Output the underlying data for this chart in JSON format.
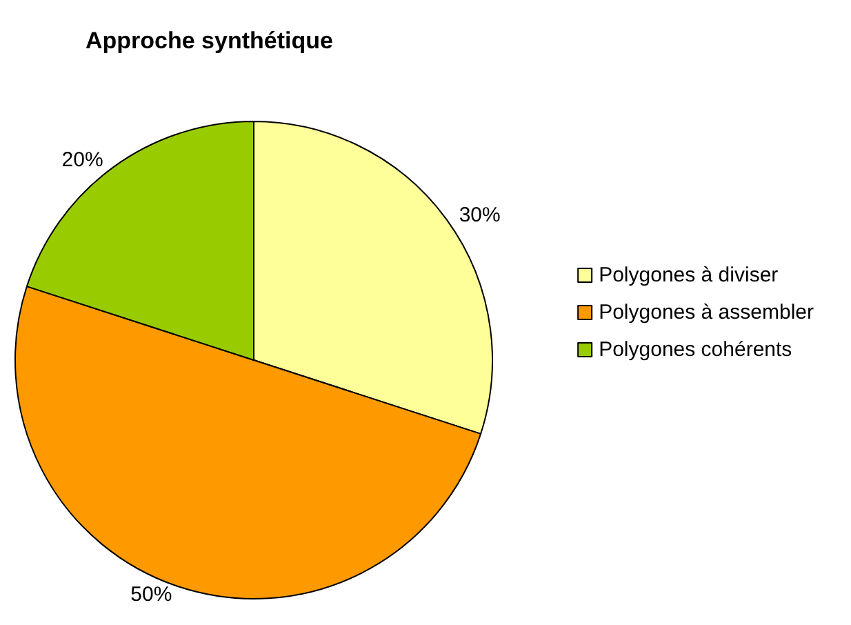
{
  "chart_data": {
    "type": "pie",
    "title": "Approche synthétique",
    "categories": [
      "Polygones à diviser",
      "Polygones à assembler",
      "Polygones cohérents"
    ],
    "values": [
      30,
      50,
      20
    ],
    "colors": [
      "#ffff99",
      "#ff9900",
      "#99cc00"
    ],
    "value_labels": [
      "30%",
      "50%",
      "20%"
    ],
    "legend": "right"
  }
}
